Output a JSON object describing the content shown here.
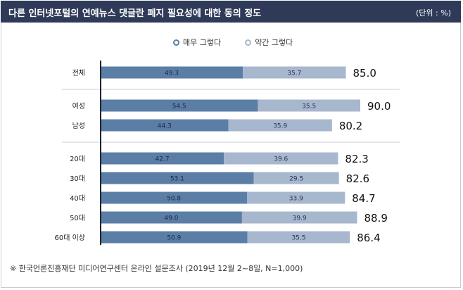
{
  "title": "다른 인터넷포털의 연예뉴스 댓글란 폐지 필요성에 대한 동의 정도",
  "unit": "(단위 : %)",
  "legend": {
    "strong_label": "매우 그렇다",
    "mild_label": "약간 그렇다"
  },
  "colors": {
    "title_bg": "#2f3a58",
    "strong": "#5b7ea6",
    "mild": "#a7b7ce",
    "axis": "#1f2433",
    "divider": "#c9ced6"
  },
  "chart_data": {
    "type": "bar",
    "orientation": "horizontal",
    "stacked": true,
    "categories": [
      "전체",
      "여성",
      "남성",
      "20대",
      "30대",
      "40대",
      "50대",
      "60대 이상"
    ],
    "groups": [
      [
        "전체"
      ],
      [
        "여성",
        "남성"
      ],
      [
        "20대",
        "30대",
        "40대",
        "50대",
        "60대 이상"
      ]
    ],
    "series": [
      {
        "name": "매우 그렇다",
        "values": [
          49.3,
          54.5,
          44.3,
          42.7,
          53.1,
          50.8,
          49.0,
          50.9
        ],
        "labels": [
          "49.3",
          "54.5",
          "44.3",
          "42.7",
          "53.1",
          "50.8",
          "49.0",
          "50.9"
        ]
      },
      {
        "name": "약간 그렇다",
        "values": [
          35.7,
          35.5,
          35.9,
          39.6,
          29.5,
          33.9,
          39.9,
          35.5
        ],
        "labels": [
          "35.7",
          "35.5",
          "35.9",
          "39.6",
          "29.5",
          "33.9",
          "39.9",
          "35.5"
        ]
      }
    ],
    "totals": [
      "85.0",
      "90.0",
      "80.2",
      "82.3",
      "82.6",
      "84.7",
      "88.9",
      "86.4"
    ],
    "xlim": [
      0,
      100
    ]
  },
  "footnote": "※ 한국언론진흥재단 미디어연구센터 온라인 설문조사 (2019년 12월 2~8일, N=1,000)"
}
